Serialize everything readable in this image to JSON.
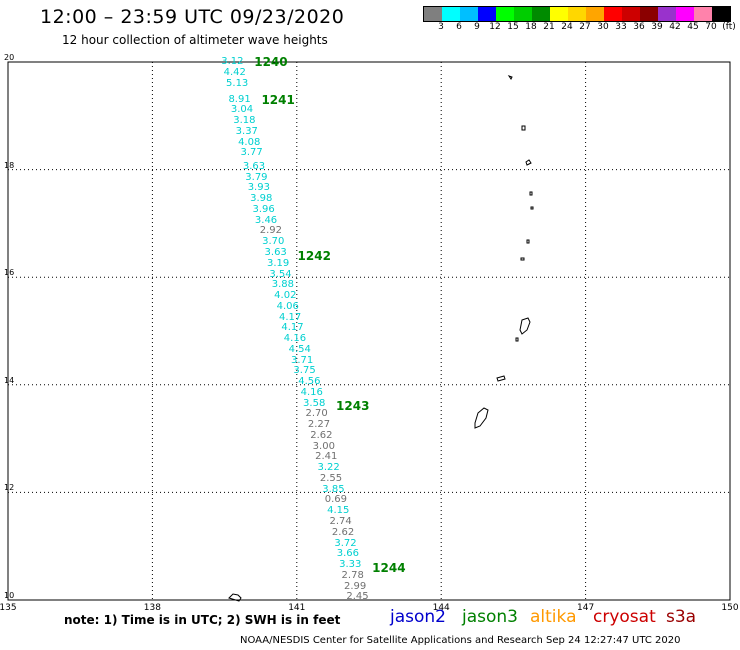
{
  "title": "12:00 – 23:59 UTC 09/23/2020",
  "subtitle": "12 hour collection of altimeter wave heights",
  "colorbar": {
    "unit_label": "(ft)",
    "swatches": [
      "#7f7f7f",
      "#00ffff",
      "#00bfff",
      "#0000ff",
      "#00ff00",
      "#00cd00",
      "#008b00",
      "#ffff00",
      "#ffd700",
      "#ffa500",
      "#ff0000",
      "#cd0000",
      "#8b0000",
      "#9932cc",
      "#ff00ff",
      "#ff82ab",
      "#000000"
    ],
    "ticks": [
      "3",
      "6",
      "9",
      "12",
      "15",
      "18",
      "21",
      "24",
      "27",
      "30",
      "33",
      "36",
      "39",
      "42",
      "45",
      "70"
    ]
  },
  "axes": {
    "lat_ticks": [
      "20",
      "18",
      "16",
      "14",
      "12",
      "10"
    ],
    "lon_ticks": [
      "135",
      "138",
      "141",
      "144",
      "147",
      "150"
    ]
  },
  "passes": [
    {
      "label": "1240",
      "lat": 20.0
    },
    {
      "label": "1241",
      "lat": 19.3
    },
    {
      "label": "1242",
      "lat": 16.4
    },
    {
      "label": "1243",
      "lat": 13.6
    },
    {
      "label": "1244",
      "lat": 10.6
    }
  ],
  "track": {
    "points": [
      {
        "lon": 139.7,
        "lat": 20.0,
        "v": "3.12",
        "sat": "jason2"
      },
      {
        "lon": 139.75,
        "lat": 19.8,
        "v": "4.42",
        "sat": "jason2"
      },
      {
        "lon": 139.8,
        "lat": 19.6,
        "v": "5.13",
        "sat": "jason2"
      },
      {
        "lon": 139.85,
        "lat": 19.3,
        "v": "8.91",
        "sat": "jason2"
      },
      {
        "lon": 139.9,
        "lat": 19.1,
        "v": "3.04",
        "sat": "jason2"
      },
      {
        "lon": 139.95,
        "lat": 18.9,
        "v": "3.18",
        "sat": "jason2"
      },
      {
        "lon": 140.0,
        "lat": 18.7,
        "v": "3.37",
        "sat": "jason2"
      },
      {
        "lon": 140.05,
        "lat": 18.5,
        "v": "4.08",
        "sat": "jason2"
      },
      {
        "lon": 140.1,
        "lat": 18.3,
        "v": "3.77",
        "sat": "jason2"
      },
      {
        "lon": 140.15,
        "lat": 18.05,
        "v": "3.63",
        "sat": "jason2"
      },
      {
        "lon": 140.2,
        "lat": 17.85,
        "v": "3.79",
        "sat": "jason2"
      },
      {
        "lon": 140.25,
        "lat": 17.65,
        "v": "3.93",
        "sat": "jason2"
      },
      {
        "lon": 140.3,
        "lat": 17.45,
        "v": "3.98",
        "sat": "jason2"
      },
      {
        "lon": 140.35,
        "lat": 17.25,
        "v": "3.96",
        "sat": "jason2"
      },
      {
        "lon": 140.4,
        "lat": 17.05,
        "v": "3.46",
        "sat": "jason2"
      },
      {
        "lon": 140.5,
        "lat": 16.85,
        "v": "2.92",
        "sat": "other"
      },
      {
        "lon": 140.55,
        "lat": 16.65,
        "v": "3.70",
        "sat": "jason2"
      },
      {
        "lon": 140.6,
        "lat": 16.45,
        "v": "3.63",
        "sat": "jason2"
      },
      {
        "lon": 140.65,
        "lat": 16.25,
        "v": "3.19",
        "sat": "jason2"
      },
      {
        "lon": 140.7,
        "lat": 16.05,
        "v": "3.54",
        "sat": "jason2"
      },
      {
        "lon": 140.75,
        "lat": 15.85,
        "v": "3.88",
        "sat": "jason2"
      },
      {
        "lon": 140.8,
        "lat": 15.65,
        "v": "4.02",
        "sat": "jason2"
      },
      {
        "lon": 140.85,
        "lat": 15.45,
        "v": "4.06",
        "sat": "jason2"
      },
      {
        "lon": 140.9,
        "lat": 15.25,
        "v": "4.17",
        "sat": "jason2"
      },
      {
        "lon": 140.95,
        "lat": 15.05,
        "v": "4.17",
        "sat": "jason2"
      },
      {
        "lon": 141.0,
        "lat": 14.85,
        "v": "4.16",
        "sat": "jason2"
      },
      {
        "lon": 141.1,
        "lat": 14.65,
        "v": "4.54",
        "sat": "jason2"
      },
      {
        "lon": 141.15,
        "lat": 14.45,
        "v": "3.71",
        "sat": "jason2"
      },
      {
        "lon": 141.2,
        "lat": 14.25,
        "v": "3.75",
        "sat": "jason2"
      },
      {
        "lon": 141.3,
        "lat": 14.05,
        "v": "4.56",
        "sat": "jason2"
      },
      {
        "lon": 141.35,
        "lat": 13.85,
        "v": "4.16",
        "sat": "jason2"
      },
      {
        "lon": 141.4,
        "lat": 13.65,
        "v": "3.58",
        "sat": "jason2"
      },
      {
        "lon": 141.45,
        "lat": 13.45,
        "v": "2.70",
        "sat": "other"
      },
      {
        "lon": 141.5,
        "lat": 13.25,
        "v": "2.27",
        "sat": "other"
      },
      {
        "lon": 141.55,
        "lat": 13.05,
        "v": "2.62",
        "sat": "other"
      },
      {
        "lon": 141.6,
        "lat": 12.85,
        "v": "3.00",
        "sat": "other"
      },
      {
        "lon": 141.65,
        "lat": 12.65,
        "v": "2.41",
        "sat": "other"
      },
      {
        "lon": 141.7,
        "lat": 12.45,
        "v": "3.22",
        "sat": "jason2"
      },
      {
        "lon": 141.75,
        "lat": 12.25,
        "v": "2.55",
        "sat": "other"
      },
      {
        "lon": 141.8,
        "lat": 12.05,
        "v": "3.85",
        "sat": "jason2"
      },
      {
        "lon": 141.85,
        "lat": 11.85,
        "v": "0.69",
        "sat": "other"
      },
      {
        "lon": 141.9,
        "lat": 11.65,
        "v": "4.15",
        "sat": "jason2"
      },
      {
        "lon": 141.95,
        "lat": 11.45,
        "v": "2.74",
        "sat": "other"
      },
      {
        "lon": 142.0,
        "lat": 11.25,
        "v": "2.62",
        "sat": "other"
      },
      {
        "lon": 142.05,
        "lat": 11.05,
        "v": "3.72",
        "sat": "jason2"
      },
      {
        "lon": 142.1,
        "lat": 10.85,
        "v": "3.66",
        "sat": "jason2"
      },
      {
        "lon": 142.15,
        "lat": 10.65,
        "v": "3.33",
        "sat": "jason2"
      },
      {
        "lon": 142.2,
        "lat": 10.45,
        "v": "2.78",
        "sat": "other"
      },
      {
        "lon": 142.25,
        "lat": 10.25,
        "v": "2.99",
        "sat": "other"
      },
      {
        "lon": 142.3,
        "lat": 10.05,
        "v": "2.45",
        "sat": "other"
      }
    ]
  },
  "colors": {
    "jason2": "#00d0d0",
    "other": "#707070",
    "pass": "#008000"
  },
  "note": "note:  1) Time is in UTC;  2) SWH is in feet",
  "legend": [
    {
      "name": "jason2",
      "color": "#0000cc"
    },
    {
      "name": "jason3",
      "color": "#008000"
    },
    {
      "name": "altika",
      "color": "#ff9900"
    },
    {
      "name": "cryosat",
      "color": "#cc0000"
    },
    {
      "name": "s3a",
      "color": "#990000"
    }
  ],
  "credit": "NOAA/NESDIS Center for Satellite Applications and Research   Sep 24 12:27:47 UTC 2020"
}
